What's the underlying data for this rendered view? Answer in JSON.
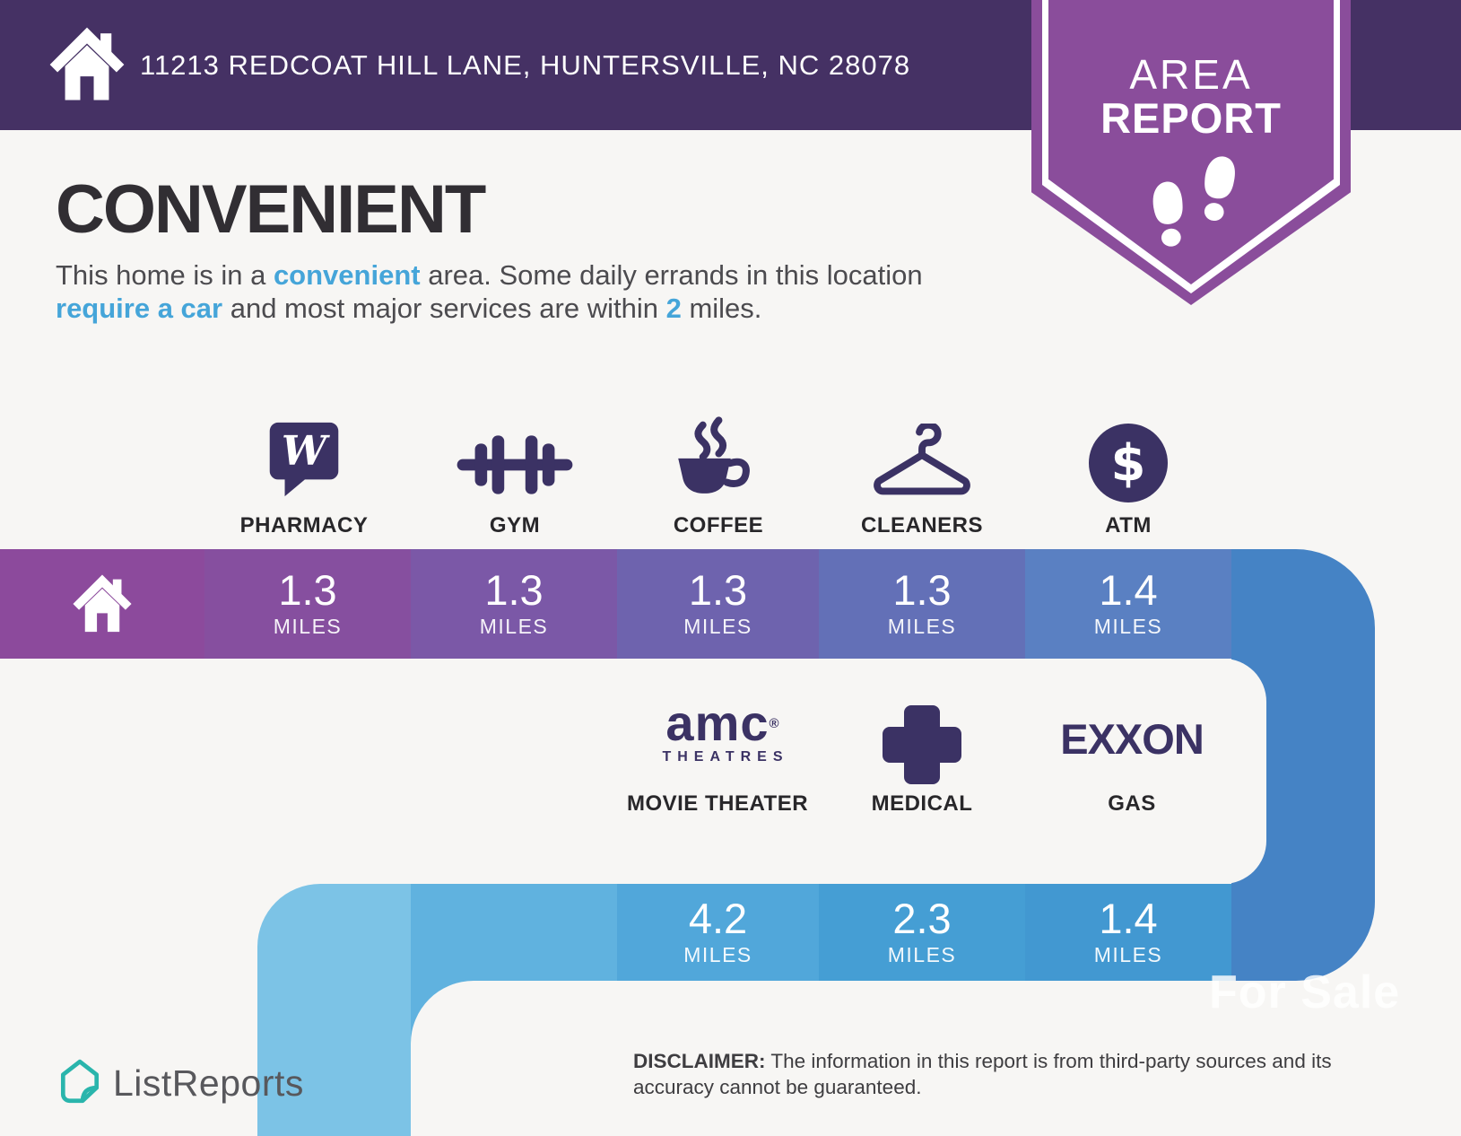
{
  "header": {
    "address": "11213 REDCOAT HILL LANE, HUNTERSVILLE, NC 28078"
  },
  "badge": {
    "line1": "AREA",
    "line2": "REPORT"
  },
  "main": {
    "title": "CONVENIENT",
    "description_segments": [
      {
        "text": "This home is in a ",
        "h": false
      },
      {
        "text": "convenient",
        "h": true
      },
      {
        "text": " area. Some daily errands in this location ",
        "h": false
      },
      {
        "text": "require a car",
        "h": true
      },
      {
        "text": " and most major services are within ",
        "h": false
      },
      {
        "text": "2",
        "h": true
      },
      {
        "text": " miles.",
        "h": false
      }
    ]
  },
  "row1": {
    "items": [
      {
        "label": "PHARMACY",
        "distance": "1.3",
        "unit": "MILES"
      },
      {
        "label": "GYM",
        "distance": "1.3",
        "unit": "MILES"
      },
      {
        "label": "COFFEE",
        "distance": "1.3",
        "unit": "MILES"
      },
      {
        "label": "CLEANERS",
        "distance": "1.3",
        "unit": "MILES"
      },
      {
        "label": "ATM",
        "distance": "1.4",
        "unit": "MILES"
      }
    ],
    "atm_symbol": "$"
  },
  "row2": {
    "amc": {
      "word": "amc",
      "registered": "®",
      "sub": "THEATRES"
    },
    "exxon": {
      "word": "EXXON"
    },
    "items": [
      {
        "label": "MOVIE THEATER",
        "distance": "4.2",
        "unit": "MILES"
      },
      {
        "label": "MEDICAL",
        "distance": "2.3",
        "unit": "MILES"
      },
      {
        "label": "GAS",
        "distance": "1.4",
        "unit": "MILES"
      }
    ]
  },
  "footer": {
    "brand": "ListReports",
    "disclaimer_label": "DISCLAIMER:",
    "disclaimer_text": " The information in this report is from third-party sources and its accuracy cannot be guaranteed.",
    "watermark": "For Sale"
  },
  "colors": {
    "header_bg": "#453164",
    "badge_purple": "#8a4d9b",
    "background": "#f7f6f4",
    "accent_blue": "#45a5d9",
    "icon_purple": "#3b3264",
    "connector_blue": "#4583c5",
    "band1_segments": [
      "#8c4a9c",
      "#864f9f",
      "#7b58a7",
      "#6e63ae",
      "#6370b7",
      "#5a80c2"
    ],
    "band2_segments": [
      "#7cc3e6",
      "#60b2df",
      "#51a7da",
      "#459ed4",
      "#4298d1"
    ]
  }
}
